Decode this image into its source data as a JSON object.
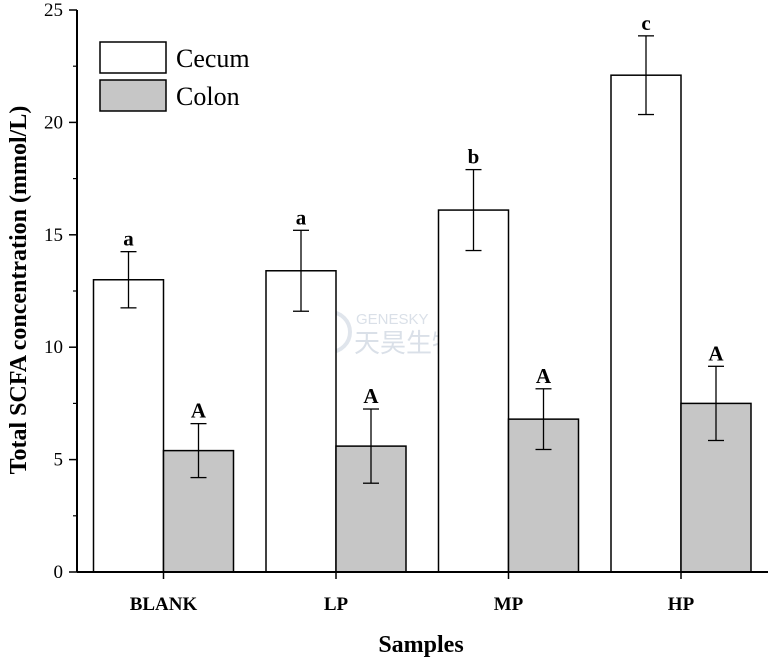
{
  "chart_data": {
    "type": "bar",
    "categories": [
      "BLANK",
      "LP",
      "MP",
      "HP"
    ],
    "series": [
      {
        "name": "Cecum",
        "values": [
          13.0,
          13.4,
          16.1,
          22.1
        ],
        "errors": [
          1.25,
          1.8,
          1.8,
          1.75
        ],
        "labels": [
          "a",
          "a",
          "b",
          "c"
        ],
        "color": "#ffffff"
      },
      {
        "name": "Colon",
        "values": [
          5.4,
          5.6,
          6.8,
          7.5
        ],
        "errors": [
          1.2,
          1.65,
          1.35,
          1.65
        ],
        "labels": [
          "A",
          "A",
          "A",
          "A"
        ],
        "color": "#c6c6c6"
      }
    ],
    "xlabel": "Samples",
    "ylabel": "Total SCFA concentration (mmol/L)",
    "ylim": [
      0,
      25
    ],
    "yticks": [
      "0",
      "5",
      "10",
      "15",
      "20",
      "25"
    ],
    "legend_position": "top-left",
    "grid": false
  },
  "watermark": {
    "line1": "GENESKY",
    "line2": "天昊生物"
  }
}
